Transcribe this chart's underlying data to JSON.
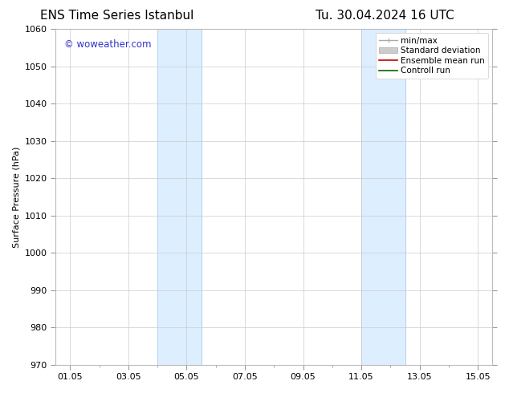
{
  "title_left": "ENS Time Series Istanbul",
  "title_right": "Tu. 30.04.2024 16 UTC",
  "ylabel": "Surface Pressure (hPa)",
  "ylim": [
    970,
    1060
  ],
  "yticks": [
    970,
    980,
    990,
    1000,
    1010,
    1020,
    1030,
    1040,
    1050,
    1060
  ],
  "xtick_labels": [
    "01.05",
    "03.05",
    "05.05",
    "07.05",
    "09.05",
    "11.05",
    "13.05",
    "15.05"
  ],
  "xtick_days": [
    1,
    3,
    5,
    7,
    9,
    11,
    13,
    15
  ],
  "xlim_days": [
    0.5,
    15.5
  ],
  "watermark": "© woweather.com",
  "watermark_color": "#3333cc",
  "shaded_bands": [
    {
      "x_start": 4.0,
      "x_end": 5.5
    },
    {
      "x_start": 11.0,
      "x_end": 12.5
    }
  ],
  "shade_color": "#ddeeff",
  "shade_edge_color": "#aaccee",
  "grid_color": "#cccccc",
  "bg_color": "#ffffff",
  "legend_items": [
    {
      "label": "min/max",
      "color": "#aaaaaa",
      "lw": 1.0,
      "style": "minmax"
    },
    {
      "label": "Standard deviation",
      "color": "#cccccc",
      "lw": 5,
      "style": "band"
    },
    {
      "label": "Ensemble mean run",
      "color": "#cc0000",
      "lw": 1.2,
      "style": "line"
    },
    {
      "label": "Controll run",
      "color": "#006600",
      "lw": 1.2,
      "style": "line"
    }
  ],
  "title_fontsize": 11,
  "axis_fontsize": 8,
  "label_fontsize": 8
}
